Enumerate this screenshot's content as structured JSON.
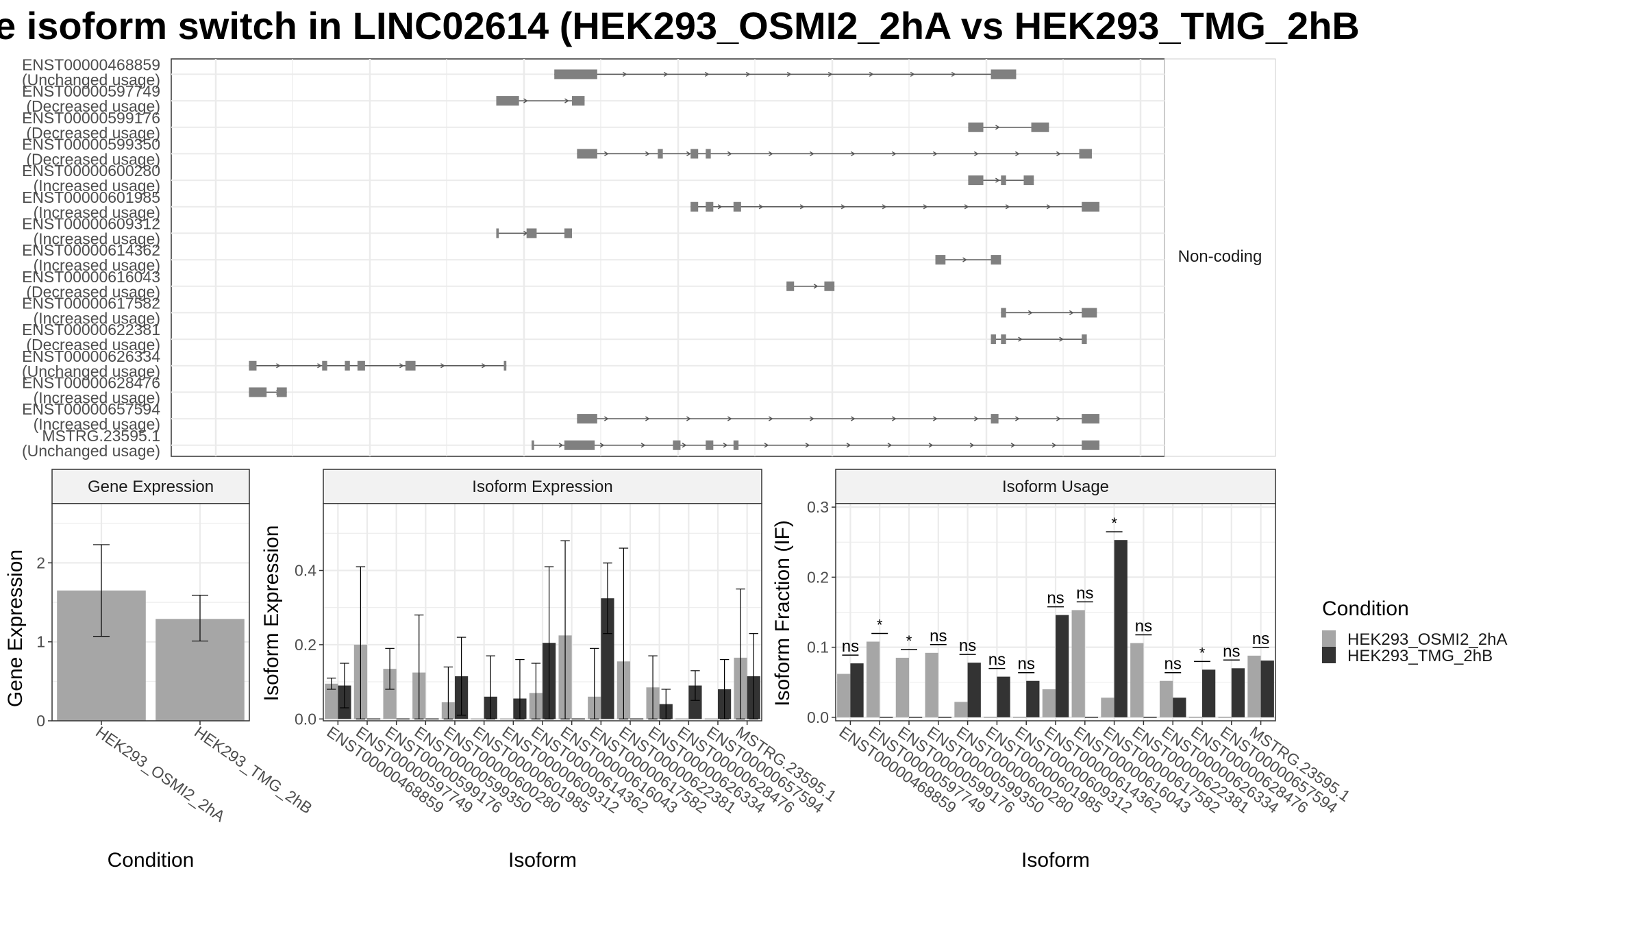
{
  "title": "e isoform switch in LINC02614 (HEK293_OSMI2_2hA vs HEK293_TMG_2hB",
  "colors": {
    "cond_a": "#a6a6a6",
    "cond_b": "#333333",
    "exon": "#808080",
    "intron": "#555555",
    "grid": "#ebebeb",
    "strip": "#f2f2f2",
    "panel_border": "#333333"
  },
  "structure_panel": {
    "strip_label": "Non-coding",
    "isoforms": [
      {
        "id": "ENST00000468859",
        "usage": "(Unchanged usage)",
        "exons": [
          [
            205,
            222
          ],
          [
            378,
            388
          ]
        ],
        "strand": "+"
      },
      {
        "id": "ENST00000597749",
        "usage": "(Decreased usage)",
        "exons": [
          [
            182,
            191
          ],
          [
            212,
            217
          ]
        ],
        "strand": "+"
      },
      {
        "id": "ENST00000599176",
        "usage": "(Decreased usage)",
        "exons": [
          [
            369,
            375
          ],
          [
            394,
            401
          ]
        ],
        "strand": "+"
      },
      {
        "id": "ENST00000599350",
        "usage": "(Decreased usage)",
        "exons": [
          [
            214,
            222
          ],
          [
            246,
            248
          ],
          [
            259,
            262
          ],
          [
            265,
            267
          ],
          [
            413,
            418
          ]
        ],
        "strand": "+"
      },
      {
        "id": "ENST00000600280",
        "usage": "(Increased usage)",
        "exons": [
          [
            369,
            375
          ],
          [
            382,
            384
          ],
          [
            391,
            395
          ]
        ],
        "strand": "+"
      },
      {
        "id": "ENST00000601985",
        "usage": "(Increased usage)",
        "exons": [
          [
            259,
            262
          ],
          [
            265,
            268
          ],
          [
            276,
            279
          ],
          [
            414,
            421
          ]
        ],
        "strand": "+"
      },
      {
        "id": "ENST00000609312",
        "usage": "(Increased usage)",
        "exons": [
          [
            182,
            183
          ],
          [
            194,
            198
          ],
          [
            209,
            212
          ]
        ],
        "strand": "+"
      },
      {
        "id": "ENST00000614362",
        "usage": "(Increased usage)",
        "exons": [
          [
            356,
            360
          ],
          [
            378,
            382
          ]
        ],
        "strand": "+"
      },
      {
        "id": "ENST00000616043",
        "usage": "(Decreased usage)",
        "exons": [
          [
            297,
            300
          ],
          [
            312,
            316
          ]
        ],
        "strand": "+"
      },
      {
        "id": "ENST00000617582",
        "usage": "(Increased usage)",
        "exons": [
          [
            382,
            384
          ],
          [
            414,
            420
          ]
        ],
        "strand": "+"
      },
      {
        "id": "ENST00000622381",
        "usage": "(Decreased usage)",
        "exons": [
          [
            382,
            384
          ],
          [
            378,
            380
          ],
          [
            414,
            416
          ]
        ],
        "strand": "+"
      },
      {
        "id": "ENST00000626334",
        "usage": "(Unchanged usage)",
        "exons": [
          [
            84,
            87
          ],
          [
            113,
            115
          ],
          [
            122,
            124
          ],
          [
            127,
            130
          ],
          [
            146,
            150
          ],
          [
            185,
            186
          ]
        ],
        "strand": "+"
      },
      {
        "id": "ENST00000628476",
        "usage": "(Increased usage)",
        "exons": [
          [
            84,
            91
          ],
          [
            95,
            99
          ]
        ],
        "strand": "+"
      },
      {
        "id": "ENST00000657594",
        "usage": "(Increased usage)",
        "exons": [
          [
            214,
            222
          ],
          [
            378,
            381
          ],
          [
            414,
            421
          ]
        ],
        "strand": "+"
      },
      {
        "id": "MSTRG.23595.1",
        "usage": "(Unchanged usage)",
        "exons": [
          [
            196,
            197
          ],
          [
            209,
            221
          ],
          [
            252,
            255
          ],
          [
            265,
            268
          ],
          [
            276,
            278
          ],
          [
            414,
            421
          ]
        ],
        "strand": "+"
      }
    ]
  },
  "chart_data": [
    {
      "type": "bar",
      "panel": "Gene Expression",
      "xlabel": "Condition",
      "ylabel": "Gene Expression",
      "categories": [
        "HEK293_OSMI2_2hA",
        "HEK293_TMG_2hB"
      ],
      "values": [
        1.65,
        1.29
      ],
      "errors": [
        [
          1.07,
          2.23
        ],
        [
          1.01,
          1.59
        ]
      ],
      "yticks": [
        "0",
        "1",
        "2"
      ],
      "ylim": [
        0,
        2.75
      ]
    },
    {
      "type": "bar",
      "panel": "Isoform Expression",
      "xlabel": "Isoform",
      "ylabel": "Isoform Expression",
      "categories": [
        "ENST00000468859",
        "ENST00000597749",
        "ENST00000599176",
        "ENST00000599350",
        "ENST00000600280",
        "ENST00000601985",
        "ENST00000609312",
        "ENST00000614362",
        "ENST00000616043",
        "ENST00000617582",
        "ENST00000622381",
        "ENST00000626334",
        "ENST00000628476",
        "ENST00000657594",
        "MSTRG.23595.1"
      ],
      "series": [
        {
          "name": "HEK293_OSMI2_2hA",
          "values": [
            0.095,
            0.2,
            0.135,
            0.125,
            0.045,
            0.0,
            0.0,
            0.07,
            0.225,
            0.06,
            0.155,
            0.085,
            0.0,
            0.0,
            0.165
          ],
          "errors": [
            [
              0.08,
              0.11
            ],
            [
              0.0,
              0.41
            ],
            [
              0.08,
              0.19
            ],
            [
              0.0,
              0.28
            ],
            [
              0.0,
              0.14
            ],
            [
              0,
              0
            ],
            [
              0,
              0
            ],
            [
              0.0,
              0.15
            ],
            [
              0.0,
              0.48
            ],
            [
              0.0,
              0.19
            ],
            [
              0.0,
              0.46
            ],
            [
              0.0,
              0.17
            ],
            [
              0,
              0
            ],
            [
              0,
              0
            ],
            [
              0.0,
              0.35
            ]
          ]
        },
        {
          "name": "HEK293_TMG_2hB",
          "values": [
            0.09,
            0.0,
            0.0,
            0.0,
            0.115,
            0.06,
            0.055,
            0.205,
            0.0,
            0.325,
            0.0,
            0.04,
            0.09,
            0.08,
            0.115
          ],
          "errors": [
            [
              0.03,
              0.15
            ],
            [
              0,
              0
            ],
            [
              0,
              0
            ],
            [
              0,
              0
            ],
            [
              0.01,
              0.22
            ],
            [
              0.0,
              0.17
            ],
            [
              0.0,
              0.16
            ],
            [
              0.0,
              0.41
            ],
            [
              0,
              0
            ],
            [
              0.23,
              0.42
            ],
            [
              0,
              0
            ],
            [
              0.0,
              0.08
            ],
            [
              0.05,
              0.13
            ],
            [
              0.0,
              0.16
            ],
            [
              0.0,
              0.23
            ]
          ]
        }
      ],
      "yticks": [
        "0.0",
        "0.2",
        "0.4"
      ],
      "ylim": [
        -0.005,
        0.58
      ]
    },
    {
      "type": "bar",
      "panel": "Isoform Usage",
      "xlabel": "Isoform",
      "ylabel": "Isoform Fraction (IF)",
      "categories": [
        "ENST00000468859",
        "ENST00000597749",
        "ENST00000599176",
        "ENST00000599350",
        "ENST00000600280",
        "ENST00000601985",
        "ENST00000609312",
        "ENST00000614362",
        "ENST00000616043",
        "ENST00000617582",
        "ENST00000622381",
        "ENST00000626334",
        "ENST00000628476",
        "ENST00000657594",
        "MSTRG.23595.1"
      ],
      "series": [
        {
          "name": "HEK293_OSMI2_2hA",
          "values": [
            0.062,
            0.108,
            0.085,
            0.092,
            0.022,
            0.0,
            0.0,
            0.04,
            0.153,
            0.028,
            0.106,
            0.052,
            0.0,
            0.0,
            0.088
          ]
        },
        {
          "name": "HEK293_TMG_2hB",
          "values": [
            0.077,
            0.0,
            0.0,
            0.0,
            0.078,
            0.058,
            0.052,
            0.146,
            0.0,
            0.253,
            0.0,
            0.028,
            0.068,
            0.07,
            0.081
          ]
        }
      ],
      "significance": [
        "ns",
        "*",
        "*",
        "ns",
        "ns",
        "ns",
        "ns",
        "ns",
        "ns",
        "*",
        "ns",
        "ns",
        "*",
        "ns",
        "ns"
      ],
      "yticks": [
        "0.0",
        "0.1",
        "0.2",
        "0.3"
      ],
      "ylim": [
        -0.005,
        0.305
      ]
    }
  ],
  "legend": {
    "title": "Condition",
    "items": [
      "HEK293_OSMI2_2hA",
      "HEK293_TMG_2hB"
    ]
  }
}
